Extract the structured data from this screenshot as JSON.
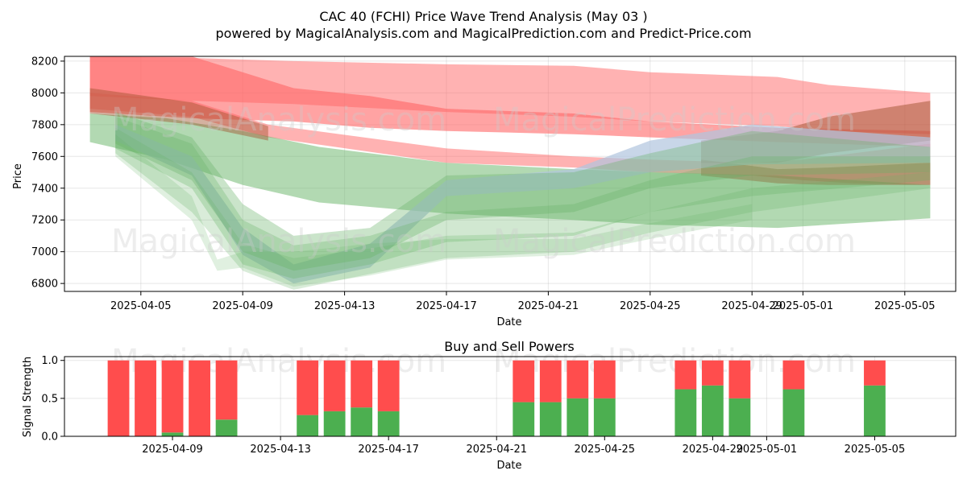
{
  "chart_data": [
    {
      "type": "area",
      "title": "CAC 40 (FCHI) Price Wave Trend Analysis (May 03 )",
      "subtitle": "powered by MagicalAnalysis.com and MagicalPrediction.com and Predict-Price.com",
      "xlabel": "Date",
      "ylabel": "Price",
      "ylim": [
        6750,
        8230
      ],
      "xlim": [
        "2025-04-02",
        "2025-05-07"
      ],
      "grid": true,
      "x_ticks": [
        "2025-04-05",
        "2025-04-09",
        "2025-04-13",
        "2025-04-17",
        "2025-04-21",
        "2025-04-25",
        "2025-04-29",
        "2025-05-01",
        "2025-05-05"
      ],
      "y_ticks": [
        6800,
        7000,
        7200,
        7400,
        7600,
        7800,
        8000,
        8200
      ],
      "watermarks": [
        "MagicalAnalysis.com",
        "MagicalPrediction.com",
        "MagicalAnalysis.com",
        "MagicalPrediction.com"
      ],
      "bands": [
        {
          "color": "#ff6666",
          "opacity": 0.5,
          "x": [
            "2025-04-03",
            "2025-04-07",
            "2025-04-11",
            "2025-04-17",
            "2025-04-22",
            "2025-04-25",
            "2025-04-30",
            "2025-05-02",
            "2025-05-06"
          ],
          "upper": [
            8230,
            8220,
            8200,
            8180,
            8170,
            8130,
            8100,
            8050,
            8000
          ],
          "lower": [
            7980,
            7950,
            7930,
            7880,
            7850,
            7820,
            7790,
            7760,
            7740
          ]
        },
        {
          "color": "#ff6666",
          "opacity": 0.6,
          "x": [
            "2025-04-03",
            "2025-04-07",
            "2025-04-11",
            "2025-04-14",
            "2025-04-17",
            "2025-04-22",
            "2025-04-25",
            "2025-04-30",
            "2025-05-06"
          ],
          "upper": [
            8230,
            8230,
            8030,
            7980,
            7900,
            7870,
            7820,
            7780,
            7760
          ],
          "lower": [
            7880,
            7840,
            7820,
            7780,
            7760,
            7740,
            7720,
            7690,
            7660
          ]
        },
        {
          "color": "#ff6666",
          "opacity": 0.5,
          "x": [
            "2025-04-03",
            "2025-04-07",
            "2025-04-10",
            "2025-04-17",
            "2025-04-22",
            "2025-04-25",
            "2025-04-29",
            "2025-05-01",
            "2025-05-03",
            "2025-05-06"
          ],
          "upper": [
            8000,
            7950,
            7800,
            7650,
            7600,
            7580,
            7560,
            7580,
            7620,
            7680
          ],
          "lower": [
            7900,
            7850,
            7720,
            7560,
            7530,
            7500,
            7480,
            7450,
            7430,
            7420
          ]
        },
        {
          "color": "#66b366",
          "opacity": 0.5,
          "x": [
            "2025-04-03",
            "2025-04-06",
            "2025-04-09",
            "2025-04-12",
            "2025-04-17",
            "2025-04-22",
            "2025-04-25",
            "2025-04-30",
            "2025-05-06"
          ],
          "upper": [
            7870,
            7840,
            7760,
            7660,
            7560,
            7520,
            7500,
            7480,
            7420
          ],
          "lower": [
            7690,
            7580,
            7420,
            7310,
            7240,
            7200,
            7170,
            7150,
            7210
          ]
        },
        {
          "color": "#a0522d",
          "opacity": 0.45,
          "x": [
            "2025-04-03",
            "2025-04-07",
            "2025-04-10"
          ],
          "upper": [
            8030,
            7940,
            7790
          ],
          "lower": [
            7870,
            7800,
            7700
          ]
        },
        {
          "color": "#a0522d",
          "opacity": 0.5,
          "x": [
            "2025-04-27",
            "2025-04-30",
            "2025-05-02",
            "2025-05-06"
          ],
          "upper": [
            7700,
            7760,
            7850,
            7950
          ],
          "lower": [
            7560,
            7560,
            7620,
            7700
          ]
        },
        {
          "color": "#a0522d",
          "opacity": 0.45,
          "x": [
            "2025-04-27",
            "2025-04-30",
            "2025-05-02",
            "2025-05-06"
          ],
          "upper": [
            7580,
            7520,
            7530,
            7560
          ],
          "lower": [
            7480,
            7430,
            7420,
            7420
          ]
        },
        {
          "color": "#b0c4de",
          "opacity": 0.7,
          "x": [
            "2025-04-04",
            "2025-04-07",
            "2025-04-09",
            "2025-04-11",
            "2025-04-14",
            "2025-04-17",
            "2025-04-22",
            "2025-04-25",
            "2025-04-29",
            "2025-05-06"
          ],
          "upper": [
            7800,
            7600,
            7150,
            6920,
            7050,
            7450,
            7520,
            7700,
            7800,
            7720
          ],
          "lower": [
            7700,
            7480,
            6980,
            6800,
            6900,
            7350,
            7400,
            7500,
            7550,
            7560
          ]
        },
        {
          "color": "#66b366",
          "opacity": 0.35,
          "x": [
            "2025-04-04",
            "2025-04-07",
            "2025-04-09",
            "2025-04-11",
            "2025-04-14",
            "2025-04-17",
            "2025-04-22",
            "2025-04-25",
            "2025-04-29",
            "2025-05-06"
          ],
          "upper": [
            7880,
            7720,
            7300,
            7100,
            7150,
            7480,
            7500,
            7620,
            7760,
            7660
          ],
          "lower": [
            7680,
            7450,
            7000,
            6880,
            6960,
            7200,
            7250,
            7400,
            7480,
            7500
          ]
        },
        {
          "color": "#66b366",
          "opacity": 0.3,
          "x": [
            "2025-04-04",
            "2025-04-07",
            "2025-04-09",
            "2025-04-11",
            "2025-04-14",
            "2025-04-17",
            "2025-04-22",
            "2025-04-25",
            "2025-04-29",
            "2025-05-06"
          ],
          "upper": [
            7850,
            7680,
            7200,
            7040,
            7100,
            7250,
            7300,
            7450,
            7600,
            7600
          ],
          "lower": [
            7650,
            7400,
            6920,
            6830,
            6920,
            7060,
            7100,
            7250,
            7350,
            7450
          ]
        },
        {
          "color": "#66b366",
          "opacity": 0.25,
          "x": [
            "2025-04-04",
            "2025-04-07",
            "2025-04-09",
            "2025-04-11",
            "2025-04-14",
            "2025-04-17",
            "2025-04-22",
            "2025-04-25",
            "2025-04-29",
            "2025-05-06"
          ],
          "upper": [
            7780,
            7500,
            7050,
            6960,
            7020,
            7100,
            7120,
            7250,
            7400,
            7500
          ],
          "lower": [
            7620,
            7250,
            6880,
            6760,
            6860,
            6960,
            7000,
            7120,
            7250,
            7400
          ]
        },
        {
          "color": "#66b366",
          "opacity": 0.2,
          "x": [
            "2025-04-04",
            "2025-04-07",
            "2025-04-08",
            "2025-04-09",
            "2025-04-11",
            "2025-04-14",
            "2025-04-17",
            "2025-04-22",
            "2025-04-25",
            "2025-04-29"
          ],
          "upper": [
            7740,
            7350,
            6950,
            7000,
            7000,
            7050,
            7080,
            7080,
            7180,
            7300
          ],
          "lower": [
            7600,
            7200,
            6880,
            6900,
            6780,
            6850,
            6950,
            6980,
            7080,
            7200
          ]
        }
      ]
    },
    {
      "type": "bar",
      "title": "Buy and Sell Powers",
      "xlabel": "Date",
      "ylabel": "Signal Strength",
      "ylim": [
        0,
        1.05
      ],
      "xlim": [
        "2025-04-05",
        "2025-05-08"
      ],
      "grid": true,
      "x_ticks": [
        "2025-04-09",
        "2025-04-13",
        "2025-04-17",
        "2025-04-21",
        "2025-04-25",
        "2025-04-29",
        "2025-05-01",
        "2025-05-05"
      ],
      "y_ticks": [
        "0.0",
        "0.5",
        "1.0"
      ],
      "buy_color": "#4caf50",
      "sell_color": "#ff4d4d",
      "dates": [
        "2025-04-07",
        "2025-04-08",
        "2025-04-09",
        "2025-04-10",
        "2025-04-11",
        "2025-04-14",
        "2025-04-15",
        "2025-04-16",
        "2025-04-17",
        "2025-04-22",
        "2025-04-23",
        "2025-04-24",
        "2025-04-25",
        "2025-04-28",
        "2025-04-29",
        "2025-04-30",
        "2025-05-02",
        "2025-05-05"
      ],
      "buy": [
        0,
        0,
        0.05,
        0,
        0.22,
        0.28,
        0.33,
        0.38,
        0.33,
        0.45,
        0.45,
        0.5,
        0.5,
        0.62,
        0.67,
        0.5,
        0.62,
        0.67
      ],
      "sell": [
        1,
        1,
        0.95,
        1,
        0.78,
        0.72,
        0.67,
        0.62,
        0.67,
        0.55,
        0.55,
        0.5,
        0.5,
        0.38,
        0.33,
        0.5,
        0.38,
        0.33
      ]
    }
  ]
}
